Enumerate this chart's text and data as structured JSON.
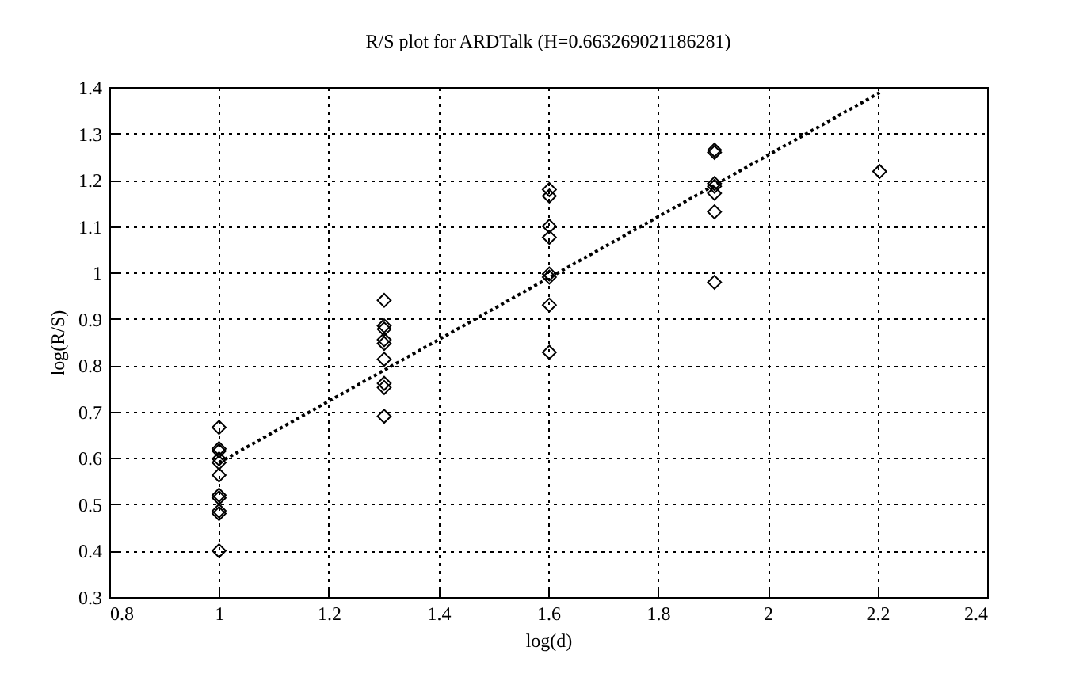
{
  "chart_data": {
    "type": "scatter",
    "title": "R/S plot for ARDTalk (H=0.663269021186281)",
    "xlabel": "log(d)",
    "ylabel": "log(R/S)",
    "xlim": [
      0.8,
      2.4
    ],
    "xticks": [
      0.8,
      1,
      1.2,
      1.4,
      1.6,
      1.8,
      2,
      2.2,
      2.4
    ],
    "ylim": [
      0.3,
      1.4
    ],
    "yticks": [
      0.3,
      0.4,
      0.5,
      0.6,
      0.7,
      0.8,
      0.9,
      1,
      1.1,
      1.2,
      1.3,
      1.4
    ],
    "grid": true,
    "series": [
      {
        "marker": "diamond",
        "color": "#000000",
        "x": [
          1,
          1,
          1,
          1,
          1,
          1,
          1,
          1,
          1,
          1,
          1,
          1.301,
          1.301,
          1.301,
          1.301,
          1.301,
          1.301,
          1.301,
          1.301,
          1.301,
          1.602,
          1.602,
          1.602,
          1.602,
          1.602,
          1.602,
          1.602,
          1.602,
          1.903,
          1.903,
          1.903,
          1.903,
          1.903,
          1.903,
          1.903,
          2.204
        ],
        "values": [
          0.666,
          0.62,
          0.615,
          0.598,
          0.59,
          0.563,
          0.52,
          0.514,
          0.486,
          0.48,
          0.4,
          0.94,
          0.885,
          0.878,
          0.855,
          0.847,
          0.813,
          0.761,
          0.752,
          0.69,
          1.179,
          1.165,
          1.1,
          1.076,
          0.997,
          0.99,
          0.93,
          0.828,
          1.264,
          1.259,
          1.192,
          1.186,
          1.171,
          1.131,
          0.979,
          1.218
        ]
      },
      {
        "type": "line",
        "marker": "none",
        "line_style": "dotted",
        "color": "#000000",
        "x": [
          1,
          2.204
        ],
        "values": [
          0.59,
          1.388
        ]
      }
    ]
  }
}
